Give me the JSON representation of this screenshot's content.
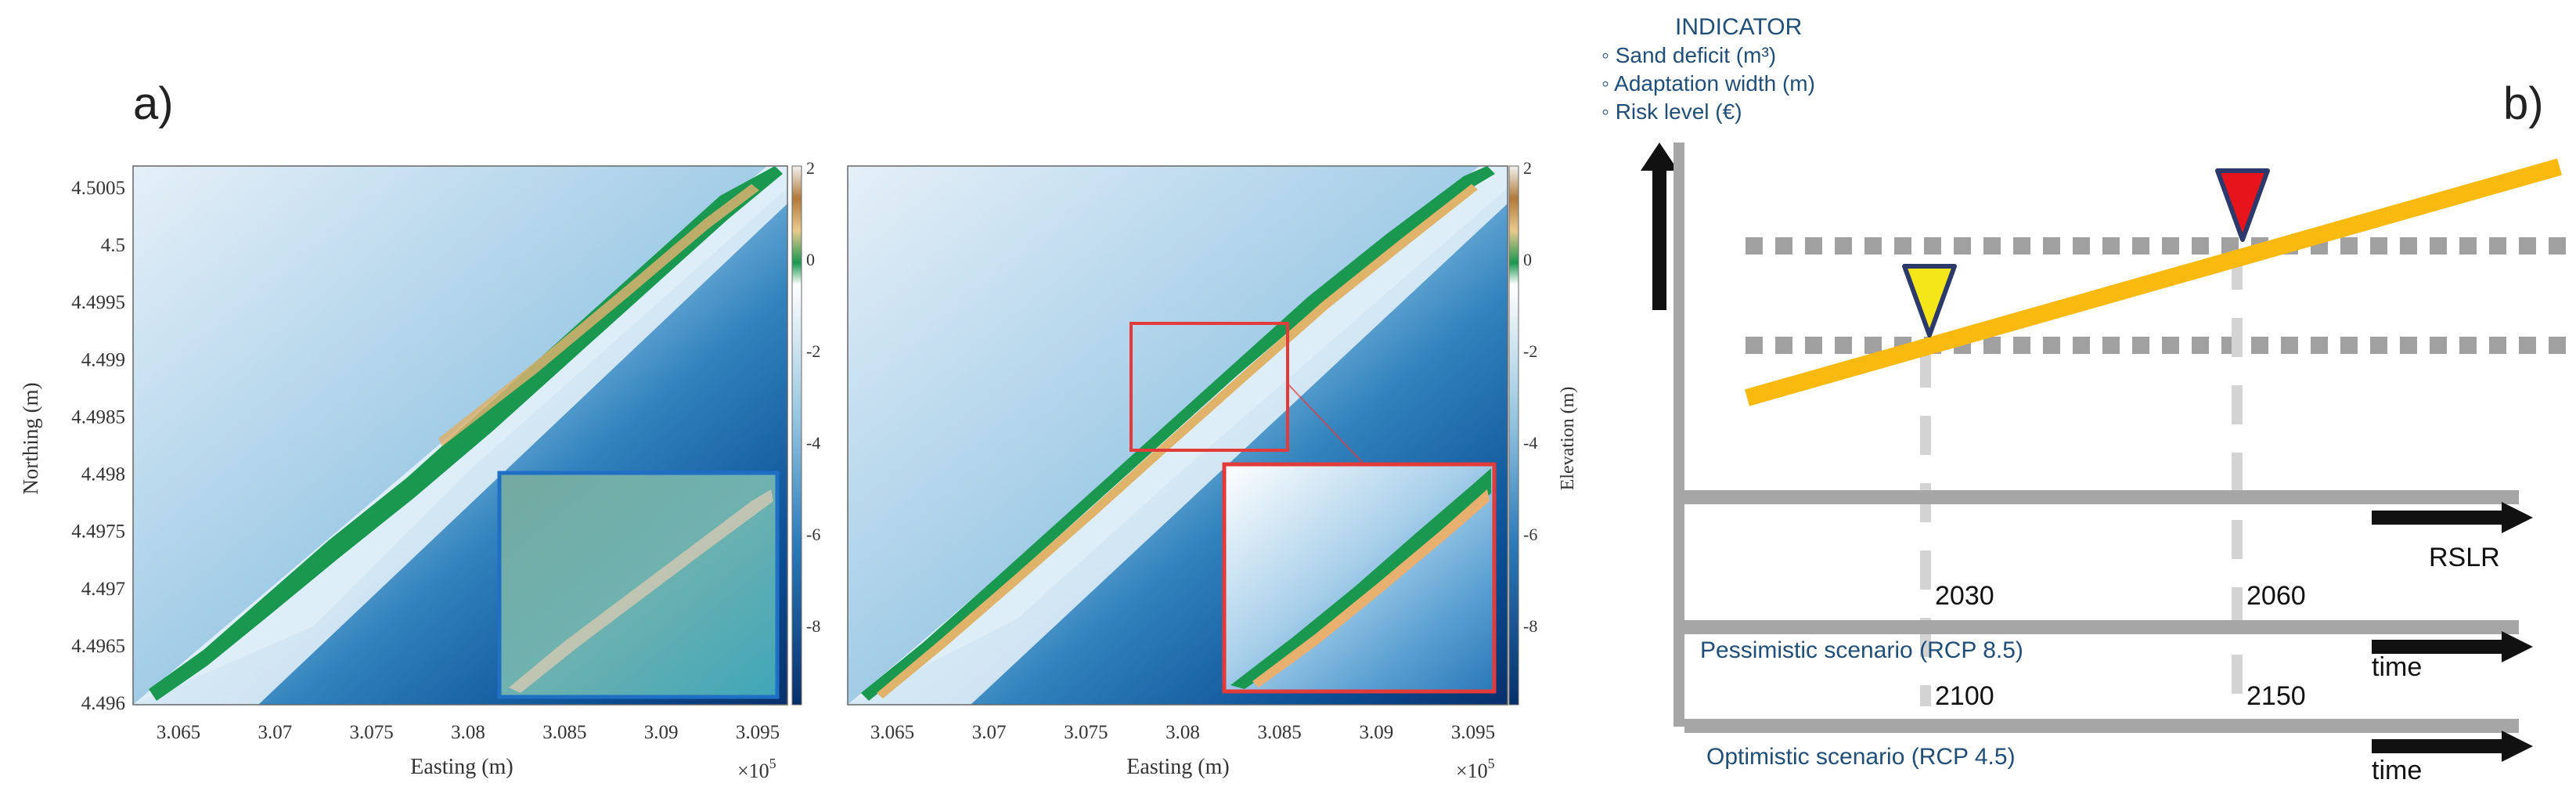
{
  "panel_a": {
    "label": "a)",
    "maps": [
      {
        "name": "left",
        "inset": "photo",
        "y_axis_label": "Northing (m)",
        "x_axis_label": "Easting (m)",
        "x_exponent": "×10",
        "x_exponent_power": "5",
        "x_ticks": [
          "3.065",
          "3.07",
          "3.075",
          "3.08",
          "3.085",
          "3.09",
          "3.095"
        ],
        "y_ticks": [
          "4.5005",
          "4.5",
          "4.4995",
          "4.499",
          "4.4985",
          "4.498",
          "4.4975",
          "4.497",
          "4.4965",
          "4.496"
        ],
        "colorbar_ticks": [
          "2",
          "0",
          "-2",
          "-4",
          "-6",
          "-8"
        ]
      },
      {
        "name": "right",
        "inset": "zoom",
        "x_axis_label": "Easting (m)",
        "x_exponent": "×10",
        "x_exponent_power": "5",
        "x_ticks": [
          "3.065",
          "3.07",
          "3.075",
          "3.08",
          "3.085",
          "3.09",
          "3.095"
        ],
        "colorbar_label": "Elevation (m)",
        "colorbar_ticks": [
          "2",
          "0",
          "-2",
          "-4",
          "-6",
          "-8"
        ]
      }
    ]
  },
  "panel_b": {
    "label": "b)",
    "indicator_title": "INDICATOR",
    "indicator_items": [
      "◦ Sand deficit (m³)",
      "◦ Adaptation width (m)",
      "◦ Risk level (€)"
    ],
    "timelines": [
      {
        "name": "rslr",
        "end_label": "RSLR",
        "scenario": "",
        "left_tick": "",
        "right_tick": ""
      },
      {
        "name": "pessimistic",
        "end_label": "time",
        "scenario": "Pessimistic scenario (RCP 8.5)",
        "left_tick": "2030",
        "right_tick": "2060"
      },
      {
        "name": "optimistic",
        "end_label": "time",
        "scenario": "Optimistic scenario (RCP 4.5)",
        "left_tick": "2100",
        "right_tick": "2150"
      }
    ],
    "thresholds": [
      "lower",
      "upper"
    ],
    "markers": [
      {
        "name": "yellow",
        "color": "#f5e61a",
        "border": "#2b3a6b"
      },
      {
        "name": "red",
        "color": "#e8141c",
        "border": "#2b3a6b"
      }
    ],
    "line_color": "#f9b90f"
  },
  "colors": {
    "deep_water": "#08306b",
    "mid_water": "#3182bd",
    "shallow_water": "#c6dbef",
    "land_green": "#1a9850",
    "land_tan": "#d9b26f",
    "text_blue": "#1f4e79",
    "inset_frame_left": "#1f6fc5",
    "inset_frame_right": "#e33a3a",
    "timeline_grey": "#a6a6a6",
    "dash_grey": "#a0a0a0"
  }
}
